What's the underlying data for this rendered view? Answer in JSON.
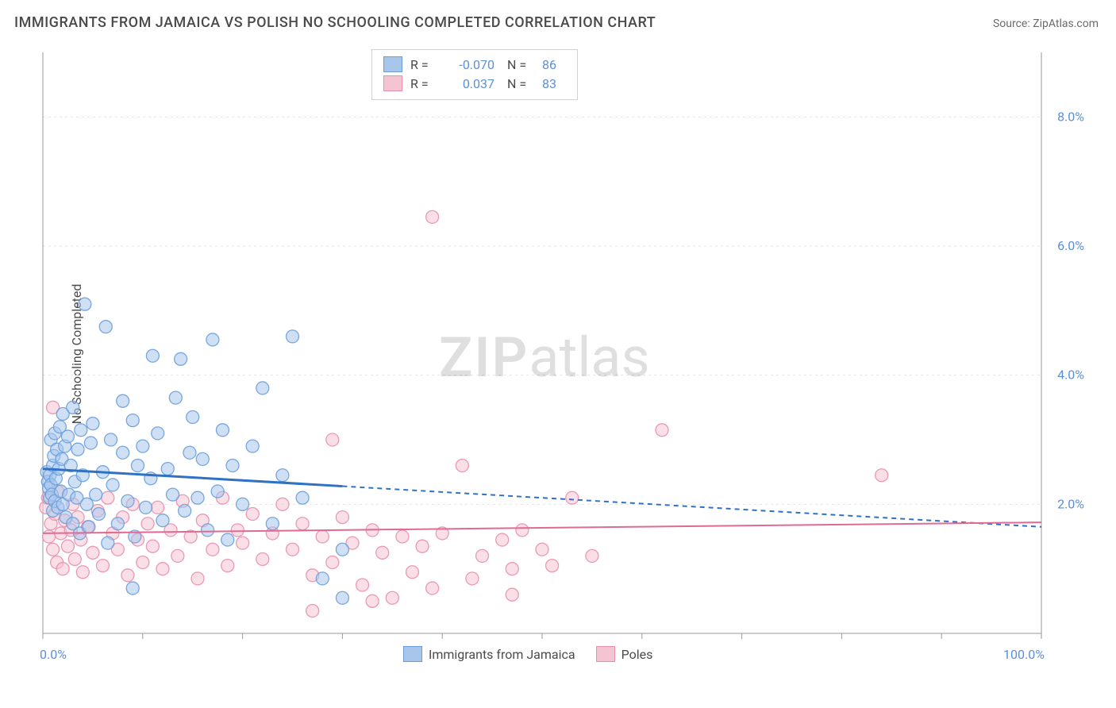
{
  "title": "IMMIGRANTS FROM JAMAICA VS POLISH NO SCHOOLING COMPLETED CORRELATION CHART",
  "source_label": "Source: ",
  "source_value": "ZipAtlas.com",
  "ylabel": "No Schooling Completed",
  "watermark_zip": "ZIP",
  "watermark_atlas": "atlas",
  "chart": {
    "type": "scatter",
    "background_color": "#ffffff",
    "grid_color": "#e4e4e4",
    "axis_color": "#9a9a9a",
    "tick_color": "#9a9a9a",
    "label_color": "#5b8fd6",
    "x": {
      "min": 0,
      "max": 100,
      "ticks": [
        0,
        10,
        20,
        30,
        40,
        50,
        60,
        70,
        80,
        90,
        100
      ],
      "tick_labels_shown": {
        "0": "0.0%",
        "100": "100.0%"
      }
    },
    "y": {
      "min": 0,
      "max": 9,
      "gridlines": [
        2,
        4,
        6,
        8
      ],
      "tick_labels": {
        "2": "2.0%",
        "4": "4.0%",
        "6": "6.0%",
        "8": "8.0%"
      }
    },
    "marker_radius": 8,
    "marker_opacity": 0.55,
    "marker_stroke_opacity": 0.9,
    "series": [
      {
        "name": "Immigrants from Jamaica",
        "fill": "#a8c6ec",
        "stroke": "#6a9edb",
        "r": "-0.070",
        "n": "86",
        "trend": {
          "solid_to_x": 30,
          "y_at_0": 2.55,
          "y_at_100": 1.65,
          "color": "#2f72c4",
          "width": 3,
          "dash": "6,5"
        },
        "points": [
          [
            0.4,
            2.5
          ],
          [
            0.5,
            2.35
          ],
          [
            0.6,
            2.25
          ],
          [
            0.7,
            2.45
          ],
          [
            0.7,
            2.1
          ],
          [
            0.8,
            2.3
          ],
          [
            0.8,
            3.0
          ],
          [
            0.9,
            2.15
          ],
          [
            1.0,
            2.6
          ],
          [
            1.0,
            1.9
          ],
          [
            1.1,
            2.75
          ],
          [
            1.2,
            2.05
          ],
          [
            1.2,
            3.1
          ],
          [
            1.3,
            2.4
          ],
          [
            1.4,
            2.85
          ],
          [
            1.5,
            1.95
          ],
          [
            1.6,
            2.55
          ],
          [
            1.7,
            3.2
          ],
          [
            1.8,
            2.2
          ],
          [
            1.9,
            2.7
          ],
          [
            2.0,
            2.0
          ],
          [
            2.0,
            3.4
          ],
          [
            2.2,
            2.9
          ],
          [
            2.3,
            1.8
          ],
          [
            2.5,
            3.05
          ],
          [
            2.6,
            2.15
          ],
          [
            2.8,
            2.6
          ],
          [
            3.0,
            3.5
          ],
          [
            3.0,
            1.7
          ],
          [
            3.2,
            2.35
          ],
          [
            3.4,
            2.1
          ],
          [
            3.5,
            2.85
          ],
          [
            3.7,
            1.55
          ],
          [
            3.8,
            3.15
          ],
          [
            4.0,
            2.45
          ],
          [
            4.2,
            5.1
          ],
          [
            4.4,
            2.0
          ],
          [
            4.6,
            1.65
          ],
          [
            4.8,
            2.95
          ],
          [
            5.0,
            3.25
          ],
          [
            5.3,
            2.15
          ],
          [
            5.6,
            1.85
          ],
          [
            6.0,
            2.5
          ],
          [
            6.3,
            4.75
          ],
          [
            6.5,
            1.4
          ],
          [
            6.8,
            3.0
          ],
          [
            7.0,
            2.3
          ],
          [
            7.5,
            1.7
          ],
          [
            8.0,
            2.8
          ],
          [
            8.0,
            3.6
          ],
          [
            8.5,
            2.05
          ],
          [
            9.0,
            3.3
          ],
          [
            9.2,
            1.5
          ],
          [
            9.5,
            2.6
          ],
          [
            10.0,
            2.9
          ],
          [
            10.3,
            1.95
          ],
          [
            10.8,
            2.4
          ],
          [
            11.0,
            4.3
          ],
          [
            11.5,
            3.1
          ],
          [
            12.0,
            1.75
          ],
          [
            12.5,
            2.55
          ],
          [
            13.0,
            2.15
          ],
          [
            13.3,
            3.65
          ],
          [
            13.8,
            4.25
          ],
          [
            14.2,
            1.9
          ],
          [
            14.7,
            2.8
          ],
          [
            15.0,
            3.35
          ],
          [
            15.5,
            2.1
          ],
          [
            16.0,
            2.7
          ],
          [
            16.5,
            1.6
          ],
          [
            17.0,
            4.55
          ],
          [
            17.5,
            2.2
          ],
          [
            18.0,
            3.15
          ],
          [
            18.5,
            1.45
          ],
          [
            19.0,
            2.6
          ],
          [
            20.0,
            2.0
          ],
          [
            21.0,
            2.9
          ],
          [
            22.0,
            3.8
          ],
          [
            23.0,
            1.7
          ],
          [
            24.0,
            2.45
          ],
          [
            25.0,
            4.6
          ],
          [
            26.0,
            2.1
          ],
          [
            28.0,
            0.85
          ],
          [
            30.0,
            1.3
          ],
          [
            9.0,
            0.7
          ],
          [
            30.0,
            0.55
          ]
        ]
      },
      {
        "name": "Poles",
        "fill": "#f5c4d2",
        "stroke": "#e98fae",
        "r": "0.037",
        "n": "83",
        "trend": {
          "solid_to_x": 100,
          "y_at_0": 1.55,
          "y_at_100": 1.72,
          "color": "#e06a93",
          "width": 2,
          "dash": ""
        },
        "points": [
          [
            0.3,
            1.95
          ],
          [
            0.5,
            2.1
          ],
          [
            0.6,
            1.5
          ],
          [
            0.8,
            1.7
          ],
          [
            1.0,
            1.3
          ],
          [
            1.0,
            3.5
          ],
          [
            1.2,
            1.85
          ],
          [
            1.4,
            1.1
          ],
          [
            1.5,
            2.2
          ],
          [
            1.8,
            1.55
          ],
          [
            2.0,
            1.0
          ],
          [
            2.2,
            1.75
          ],
          [
            2.5,
            1.35
          ],
          [
            2.8,
            1.6
          ],
          [
            3.0,
            2.0
          ],
          [
            3.2,
            1.15
          ],
          [
            3.5,
            1.8
          ],
          [
            3.8,
            1.45
          ],
          [
            4.0,
            0.95
          ],
          [
            4.5,
            1.65
          ],
          [
            5.0,
            1.25
          ],
          [
            5.5,
            1.9
          ],
          [
            6.0,
            1.05
          ],
          [
            6.5,
            2.1
          ],
          [
            7.0,
            1.55
          ],
          [
            7.5,
            1.3
          ],
          [
            8.0,
            1.8
          ],
          [
            8.5,
            0.9
          ],
          [
            9.0,
            2.0
          ],
          [
            9.5,
            1.45
          ],
          [
            10.0,
            1.1
          ],
          [
            10.5,
            1.7
          ],
          [
            11.0,
            1.35
          ],
          [
            11.5,
            1.95
          ],
          [
            12.0,
            1.0
          ],
          [
            12.8,
            1.6
          ],
          [
            13.5,
            1.2
          ],
          [
            14.0,
            2.05
          ],
          [
            14.8,
            1.5
          ],
          [
            15.5,
            0.85
          ],
          [
            16.0,
            1.75
          ],
          [
            17.0,
            1.3
          ],
          [
            18.0,
            2.1
          ],
          [
            18.5,
            1.05
          ],
          [
            19.5,
            1.6
          ],
          [
            20.0,
            1.4
          ],
          [
            21.0,
            1.85
          ],
          [
            22.0,
            1.15
          ],
          [
            23.0,
            1.55
          ],
          [
            24.0,
            2.0
          ],
          [
            25.0,
            1.3
          ],
          [
            26.0,
            1.7
          ],
          [
            27.0,
            0.9
          ],
          [
            28.0,
            1.5
          ],
          [
            29.0,
            1.1
          ],
          [
            30.0,
            1.8
          ],
          [
            29.0,
            3.0
          ],
          [
            31.0,
            1.4
          ],
          [
            32.0,
            0.75
          ],
          [
            33.0,
            1.6
          ],
          [
            34.0,
            1.25
          ],
          [
            35.0,
            0.55
          ],
          [
            36.0,
            1.5
          ],
          [
            37.0,
            0.95
          ],
          [
            38.0,
            1.35
          ],
          [
            39.0,
            0.7
          ],
          [
            40.0,
            1.55
          ],
          [
            27.0,
            0.35
          ],
          [
            42.0,
            2.6
          ],
          [
            43.0,
            0.85
          ],
          [
            44.0,
            1.2
          ],
          [
            46.0,
            1.45
          ],
          [
            47.0,
            1.0
          ],
          [
            48.0,
            1.6
          ],
          [
            50.0,
            1.3
          ],
          [
            51.0,
            1.05
          ],
          [
            55.0,
            1.2
          ],
          [
            53.0,
            2.1
          ],
          [
            39.0,
            6.45
          ],
          [
            62.0,
            3.15
          ],
          [
            84.0,
            2.45
          ],
          [
            47.0,
            0.6
          ],
          [
            33.0,
            0.5
          ]
        ]
      }
    ],
    "legend_box": {
      "r_label": "R =",
      "n_label": "N ="
    },
    "bottom_legend": {
      "s1": "Immigrants from Jamaica",
      "s2": "Poles"
    }
  }
}
